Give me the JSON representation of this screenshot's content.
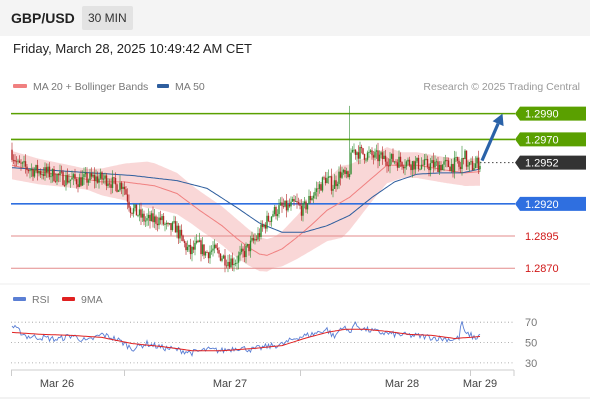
{
  "header": {
    "pair": "GBP/USD",
    "timeframe": "30 MIN"
  },
  "datetime": "Friday, March 28, 2025 10:49:42 AM CET",
  "legend": {
    "ma20": "MA 20 + Bollinger Bands",
    "ma50": "MA 50",
    "source": "Research © 2025 Trading Central"
  },
  "rsi_legend": {
    "rsi": "RSI",
    "ma": "9MA"
  },
  "colors": {
    "resistance": "#5aa000",
    "support": "#2f6fe0",
    "minor_level": "#e38b8b",
    "minor_text": "#d01919",
    "current": "#333333",
    "ma20": "#f08080",
    "ma50": "#2e5e9e",
    "bollinger_fill": "#f7c6c6",
    "candle_up": "#2e8b2e",
    "candle_down": "#b22222",
    "rsi": "#5b7fd4",
    "rsi_ma": "#e02020",
    "arrow": "#2a62a8"
  },
  "chart_data": [
    {
      "type": "candlestick",
      "x_labels": [
        "Mar 26",
        "Mar 27",
        "Mar 28",
        "Mar 29"
      ],
      "ylim": [
        1.2857,
        1.3006
      ],
      "levels": [
        {
          "value": 1.299,
          "label": "1.2990",
          "kind": "resistance"
        },
        {
          "value": 1.297,
          "label": "1.2970",
          "kind": "resistance"
        },
        {
          "value": 1.2952,
          "label": "1.2952",
          "kind": "current"
        },
        {
          "value": 1.292,
          "label": "1.2920",
          "kind": "support"
        },
        {
          "value": 1.2895,
          "label": "1.2895",
          "kind": "minor"
        },
        {
          "value": 1.287,
          "label": "1.2870",
          "kind": "minor"
        }
      ],
      "series": [
        {
          "name": "MA 20 + Bollinger Bands",
          "keys": [
            [
              0,
              1.295
            ],
            [
              18,
              1.2945
            ],
            [
              40,
              1.2941
            ],
            [
              60,
              1.2937
            ],
            [
              75,
              1.2937
            ],
            [
              95,
              1.2934
            ],
            [
              110,
              1.2928
            ],
            [
              125,
              1.2915
            ],
            [
              140,
              1.2903
            ],
            [
              150,
              1.2893
            ],
            [
              158,
              1.2886
            ],
            [
              165,
              1.2881
            ],
            [
              170,
              1.288
            ],
            [
              180,
              1.2885
            ],
            [
              190,
              1.2894
            ],
            [
              200,
              1.2904
            ],
            [
              210,
              1.2915
            ],
            [
              225,
              1.2925
            ],
            [
              240,
              1.294
            ],
            [
              250,
              1.295
            ],
            [
              270,
              1.295
            ],
            [
              290,
              1.2946
            ],
            [
              302,
              1.2944
            ],
            [
              312,
              1.2945
            ]
          ]
        },
        {
          "name": "MA 50",
          "keys": [
            [
              0,
              1.2948
            ],
            [
              40,
              1.2945
            ],
            [
              80,
              1.2942
            ],
            [
              110,
              1.2938
            ],
            [
              130,
              1.2932
            ],
            [
              150,
              1.2917
            ],
            [
              165,
              1.2905
            ],
            [
              180,
              1.2898
            ],
            [
              195,
              1.2898
            ],
            [
              210,
              1.2903
            ],
            [
              225,
              1.2911
            ],
            [
              240,
              1.2925
            ],
            [
              255,
              1.2937
            ],
            [
              270,
              1.2943
            ],
            [
              285,
              1.2944
            ],
            [
              300,
              1.2944
            ],
            [
              312,
              1.2947
            ]
          ]
        }
      ],
      "bollinger_width": [
        [
          0,
          0.0011
        ],
        [
          50,
          0.0008
        ],
        [
          90,
          0.0018
        ],
        [
          120,
          0.0015
        ],
        [
          150,
          0.0015
        ],
        [
          175,
          0.0012
        ],
        [
          200,
          0.002
        ],
        [
          220,
          0.0028
        ],
        [
          240,
          0.0018
        ],
        [
          260,
          0.001
        ],
        [
          300,
          0.001
        ],
        [
          312,
          0.0011
        ]
      ],
      "price_path": [
        [
          0,
          1.2962
        ],
        [
          5,
          1.295
        ],
        [
          15,
          1.2946
        ],
        [
          25,
          1.2944
        ],
        [
          35,
          1.294
        ],
        [
          45,
          1.2938
        ],
        [
          55,
          1.294
        ],
        [
          65,
          1.2939
        ],
        [
          70,
          1.2934
        ],
        [
          75,
          1.2936
        ],
        [
          80,
          1.2917
        ],
        [
          85,
          1.2912
        ],
        [
          90,
          1.2907
        ],
        [
          100,
          1.2908
        ],
        [
          105,
          1.29
        ],
        [
          110,
          1.2902
        ],
        [
          115,
          1.289
        ],
        [
          120,
          1.2882
        ],
        [
          125,
          1.2888
        ],
        [
          130,
          1.2882
        ],
        [
          135,
          1.2884
        ],
        [
          140,
          1.288
        ],
        [
          145,
          1.2876
        ],
        [
          150,
          1.2876
        ],
        [
          155,
          1.2881
        ],
        [
          160,
          1.2888
        ],
        [
          165,
          1.2895
        ],
        [
          170,
          1.2905
        ],
        [
          175,
          1.2913
        ],
        [
          180,
          1.2917
        ],
        [
          185,
          1.2917
        ],
        [
          190,
          1.292
        ],
        [
          195,
          1.2915
        ],
        [
          200,
          1.2925
        ],
        [
          205,
          1.2932
        ],
        [
          210,
          1.294
        ],
        [
          215,
          1.2934
        ],
        [
          220,
          1.2944
        ],
        [
          225,
          1.2939
        ],
        [
          228,
          1.2962
        ],
        [
          235,
          1.2959
        ],
        [
          245,
          1.2956
        ],
        [
          255,
          1.2954
        ],
        [
          265,
          1.2952
        ],
        [
          275,
          1.295
        ],
        [
          285,
          1.295
        ],
        [
          295,
          1.295
        ],
        [
          298,
          1.2952
        ],
        [
          300,
          1.2946
        ],
        [
          302,
          1.296
        ],
        [
          305,
          1.2948
        ],
        [
          309,
          1.295
        ],
        [
          312,
          1.2952
        ]
      ],
      "arrow": {
        "from": [
          312,
          1.2952
        ],
        "to": [
          327,
          1.299
        ]
      }
    },
    {
      "type": "line",
      "name": "RSI",
      "ylim": [
        23,
        80
      ],
      "y_ticks": [
        70,
        50,
        30
      ],
      "series": [
        {
          "name": "RSI",
          "keys": [
            [
              0,
              66
            ],
            [
              10,
              56
            ],
            [
              20,
              55
            ],
            [
              30,
              53
            ],
            [
              40,
              57
            ],
            [
              50,
              51
            ],
            [
              60,
              58
            ],
            [
              70,
              53
            ],
            [
              75,
              49
            ],
            [
              80,
              44
            ],
            [
              90,
              49
            ],
            [
              100,
              45
            ],
            [
              110,
              43
            ],
            [
              120,
              40
            ],
            [
              130,
              43
            ],
            [
              140,
              42
            ],
            [
              150,
              45
            ],
            [
              160,
              43
            ],
            [
              170,
              46
            ],
            [
              180,
              48
            ],
            [
              190,
              55
            ],
            [
              200,
              58
            ],
            [
              210,
              63
            ],
            [
              215,
              55
            ],
            [
              220,
              66
            ],
            [
              225,
              60
            ],
            [
              228,
              68
            ],
            [
              235,
              63
            ],
            [
              245,
              60
            ],
            [
              255,
              58
            ],
            [
              265,
              57
            ],
            [
              275,
              56
            ],
            [
              285,
              54
            ],
            [
              295,
              53
            ],
            [
              298,
              55
            ],
            [
              300,
              71
            ],
            [
              302,
              58
            ],
            [
              305,
              58
            ],
            [
              309,
              54
            ],
            [
              312,
              58
            ]
          ]
        },
        {
          "name": "9MA",
          "keys": [
            [
              0,
              60
            ],
            [
              20,
              58
            ],
            [
              40,
              57
            ],
            [
              60,
              55
            ],
            [
              80,
              49
            ],
            [
              100,
              46
            ],
            [
              120,
              42
            ],
            [
              140,
              42
            ],
            [
              160,
              44
            ],
            [
              180,
              47
            ],
            [
              195,
              54
            ],
            [
              210,
              60
            ],
            [
              222,
              63
            ],
            [
              235,
              63
            ],
            [
              250,
              61
            ],
            [
              265,
              58
            ],
            [
              280,
              57
            ],
            [
              295,
              54
            ],
            [
              305,
              55
            ],
            [
              312,
              56
            ]
          ]
        }
      ]
    }
  ]
}
